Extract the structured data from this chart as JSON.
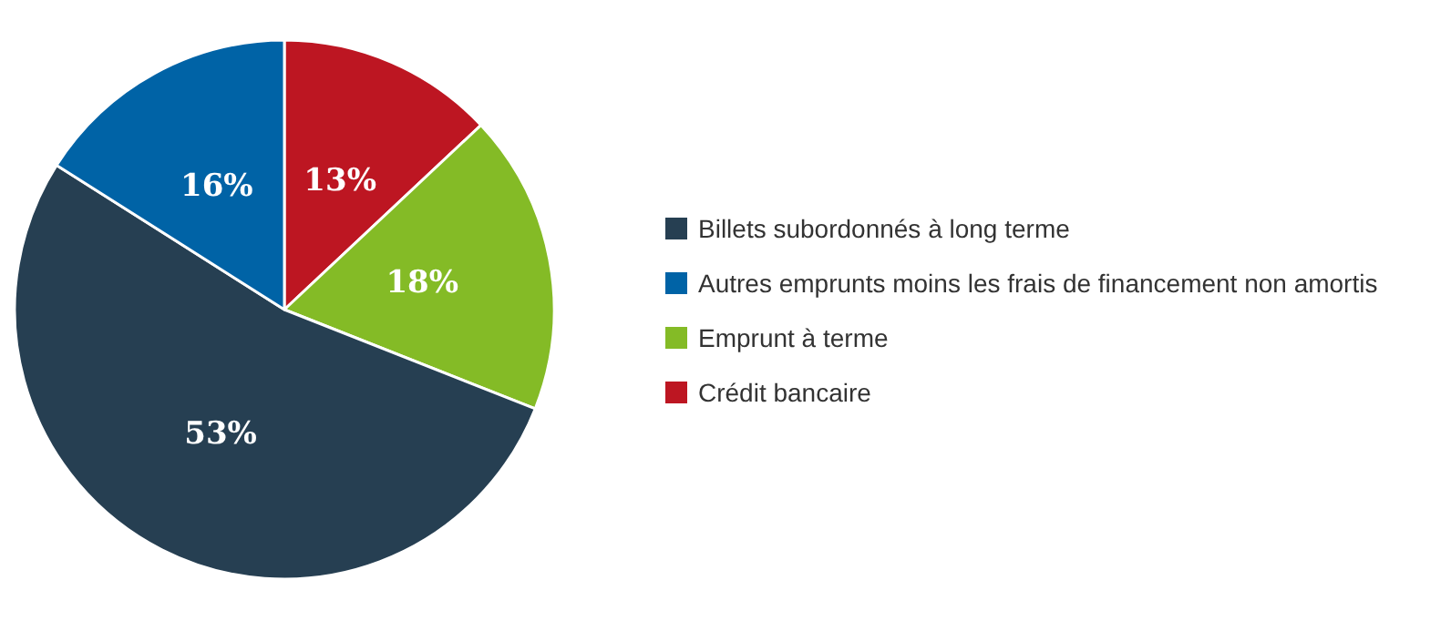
{
  "chart_data": {
    "type": "pie",
    "categories": [
      "Crédit bancaire",
      "Emprunt à terme",
      "Billets subordonnés à long terme",
      "Autres emprunts moins les frais de financement non amortis"
    ],
    "values": [
      13,
      18,
      53,
      16
    ],
    "value_labels": [
      "13%",
      "18%",
      "53%",
      "16%"
    ],
    "colors": [
      "#bd1622",
      "#84bb26",
      "#263f52",
      "#0063a6"
    ],
    "legend": "right"
  }
}
